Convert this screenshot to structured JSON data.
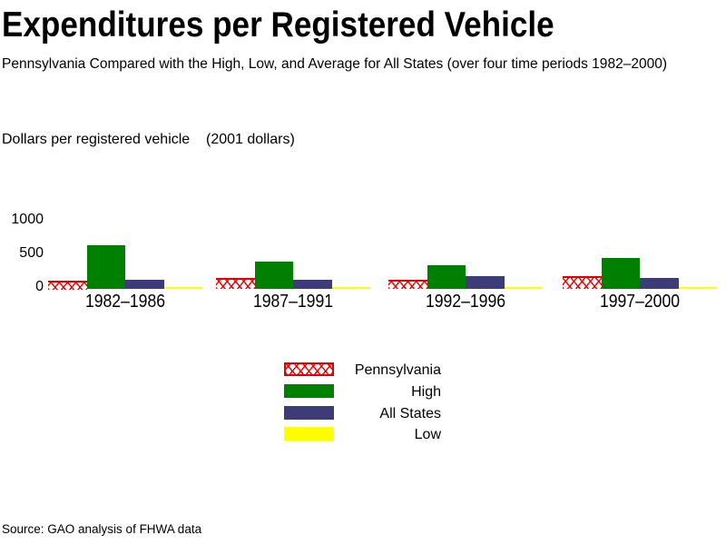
{
  "page": {
    "title": "Expenditures per Registered Vehicle",
    "subtitle": "Pennsylvania Compared with the High, Low, and Average for All States (over four time periods 1982–2000)",
    "source": "Source: GAO analysis of FHWA data"
  },
  "chart_data": {
    "type": "bar",
    "title": "Expenditures per Registered Vehicle",
    "subtitle": "Pennsylvania Compared with the High, Low, and Average for All States (over four time periods 1982–2000)",
    "ylabel": "Dollars per registered vehicle    (2001 dollars)",
    "ylim": [
      0,
      1000
    ],
    "yticks": [
      1000,
      500,
      0
    ],
    "grid": false,
    "legend_position": "bottom-center",
    "categories": [
      "1982–1986",
      "1987–1991",
      "1992–1996",
      "1997–2000"
    ],
    "series": [
      {
        "name": "Pennsylvania",
        "color": "#e10000",
        "pattern": "red-crosshatch-on-white",
        "values": [
          125,
          175,
          140,
          190
        ]
      },
      {
        "name": "High",
        "color": "#008000",
        "pattern": "solid",
        "values": [
          650,
          410,
          355,
          470
        ]
      },
      {
        "name": "All States",
        "color": "#3e3c78",
        "pattern": "solid",
        "values": [
          140,
          140,
          190,
          175
        ]
      },
      {
        "name": "Low",
        "color": "#ffff00",
        "pattern": "solid",
        "values": [
          40,
          40,
          40,
          40
        ]
      }
    ],
    "source_note": "Source: GAO analysis of FHWA data"
  }
}
